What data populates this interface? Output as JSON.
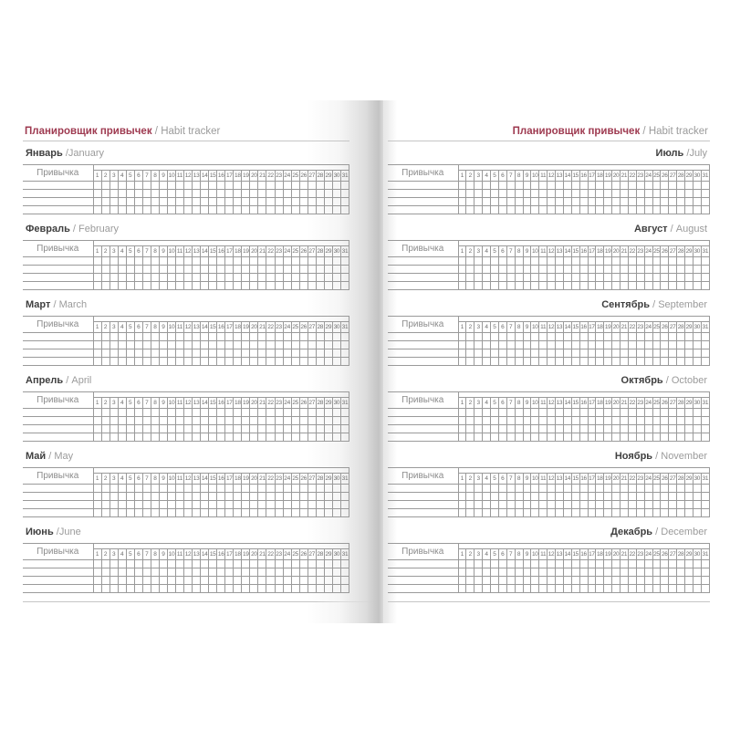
{
  "header": {
    "title_ru": "Планировщик привычек",
    "sep": " / ",
    "title_en": "Habit tracker"
  },
  "labels": {
    "habit": "Привычка"
  },
  "days": [
    1,
    2,
    3,
    4,
    5,
    6,
    7,
    8,
    9,
    10,
    11,
    12,
    13,
    14,
    15,
    16,
    17,
    18,
    19,
    20,
    21,
    22,
    23,
    24,
    25,
    26,
    27,
    28,
    29,
    30,
    31
  ],
  "table": {
    "empty_rows": 4
  },
  "months": [
    {
      "name_ru": "Январь",
      "sep": " /",
      "name_en": "January"
    },
    {
      "name_ru": "Февраль",
      "sep": " / ",
      "name_en": "February"
    },
    {
      "name_ru": "Март",
      "sep": " / ",
      "name_en": "March"
    },
    {
      "name_ru": "Апрель",
      "sep": " / ",
      "name_en": "April"
    },
    {
      "name_ru": "Май",
      "sep": " / ",
      "name_en": "May"
    },
    {
      "name_ru": "Июнь",
      "sep": " /",
      "name_en": "June"
    },
    {
      "name_ru": "Июль",
      "sep": " /",
      "name_en": "July"
    },
    {
      "name_ru": "Август",
      "sep": " / ",
      "name_en": "August"
    },
    {
      "name_ru": "Сентябрь",
      "sep": " / ",
      "name_en": "September"
    },
    {
      "name_ru": "Октябрь",
      "sep": " / ",
      "name_en": "October"
    },
    {
      "name_ru": "Ноябрь",
      "sep": " / ",
      "name_en": "November"
    },
    {
      "name_ru": "Декабрь",
      "sep": " / ",
      "name_en": "December"
    }
  ],
  "colors": {
    "accent": "#9e3a50",
    "muted_text": "#9b9b9b",
    "title_text": "#3f3f3f",
    "grid_line": "#9a9a9a",
    "rule_line": "#c6c6c6",
    "habit_text": "#8c8c8c",
    "number_text": "#6f6f6f"
  }
}
